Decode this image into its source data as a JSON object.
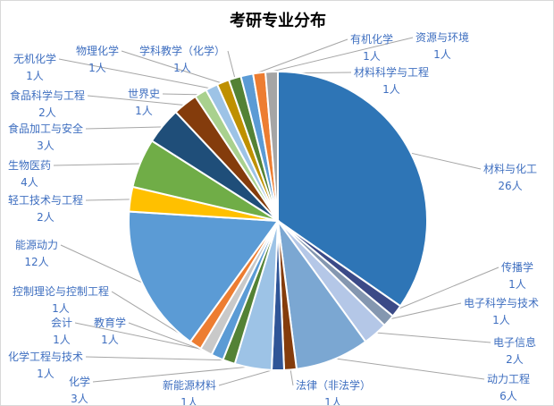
{
  "chart_data": {
    "type": "pie",
    "title": "考研专业分布",
    "unit": "人",
    "start_angle": "12 o'clock, clockwise",
    "slices": [
      {
        "label": "材料与化工",
        "value": 26,
        "color": "#2E75B6"
      },
      {
        "label": "传播学",
        "value": 1,
        "color": "#3B4A87"
      },
      {
        "label": "电子科学与技术",
        "value": 1,
        "color": "#8497B0"
      },
      {
        "label": "电子信息",
        "value": 2,
        "color": "#B4C7E7"
      },
      {
        "label": "动力工程",
        "value": 6,
        "color": "#7BA7D2"
      },
      {
        "label": "法律（非法学）",
        "value": 1,
        "color": "#843C0C"
      },
      {
        "label": "新能源材料",
        "value": 1,
        "color": "#2F5597"
      },
      {
        "label": "化学",
        "value": 3,
        "color": "#9DC3E6"
      },
      {
        "label": "化学工程与技术",
        "value": 1,
        "color": "#548235"
      },
      {
        "label": "教育学",
        "value": 1,
        "color": "#5B9BD5"
      },
      {
        "label": "会计",
        "value": 1,
        "color": "#C9C9C9"
      },
      {
        "label": "控制理论与控制工程",
        "value": 1,
        "color": "#ED7D31"
      },
      {
        "label": "能源动力",
        "value": 12,
        "color": "#5B9BD5"
      },
      {
        "label": "轻工技术与工程",
        "value": 2,
        "color": "#FFC000"
      },
      {
        "label": "生物医药",
        "value": 4,
        "color": "#70AD47"
      },
      {
        "label": "食品加工与安全",
        "value": 3,
        "color": "#1F4E79"
      },
      {
        "label": "食品科学与工程",
        "value": 2,
        "color": "#843C0C"
      },
      {
        "label": "世界史",
        "value": 1,
        "color": "#A9D18E"
      },
      {
        "label": "无机化学",
        "value": 1,
        "color": "#9DC3E6"
      },
      {
        "label": "物理化学",
        "value": 1,
        "color": "#BF9000"
      },
      {
        "label": "学科教学（化学）",
        "value": 1,
        "color": "#548235"
      },
      {
        "label": "有机化学",
        "value": 1,
        "color": "#5B9BD5"
      },
      {
        "label": "资源与环境",
        "value": 1,
        "color": "#ED7D31"
      },
      {
        "label": "材料科学与工程",
        "value": 1,
        "color": "#A5A5A5"
      }
    ]
  }
}
